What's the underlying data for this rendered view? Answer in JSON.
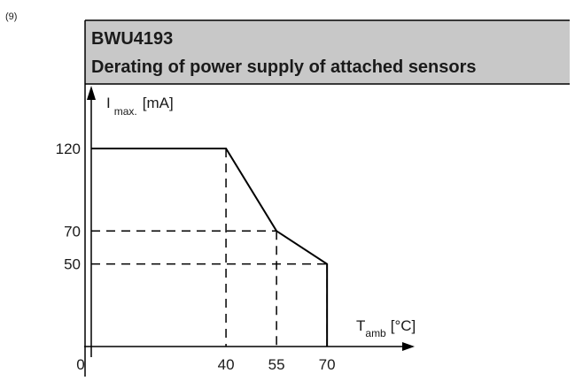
{
  "figure_number": "(9)",
  "chart_data": {
    "type": "line",
    "title": "BWU4193",
    "subtitle": "Derating of power supply of attached sensors",
    "ylabel": {
      "symbol": "I",
      "subscript": "max.",
      "unit": "[mA]"
    },
    "xlabel": {
      "symbol": "T",
      "subscript": "amb",
      "unit": "[°C]"
    },
    "x": [
      0,
      40,
      55,
      70,
      70
    ],
    "series": [
      {
        "color": "#000000",
        "values": [
          120,
          120,
          70,
          50,
          0
        ]
      }
    ],
    "xlim": [
      0,
      96
    ],
    "xticks": [
      0,
      40,
      55,
      70
    ],
    "ylim": [
      0,
      158
    ],
    "yticks": [
      50,
      70,
      120
    ],
    "grid": false
  }
}
